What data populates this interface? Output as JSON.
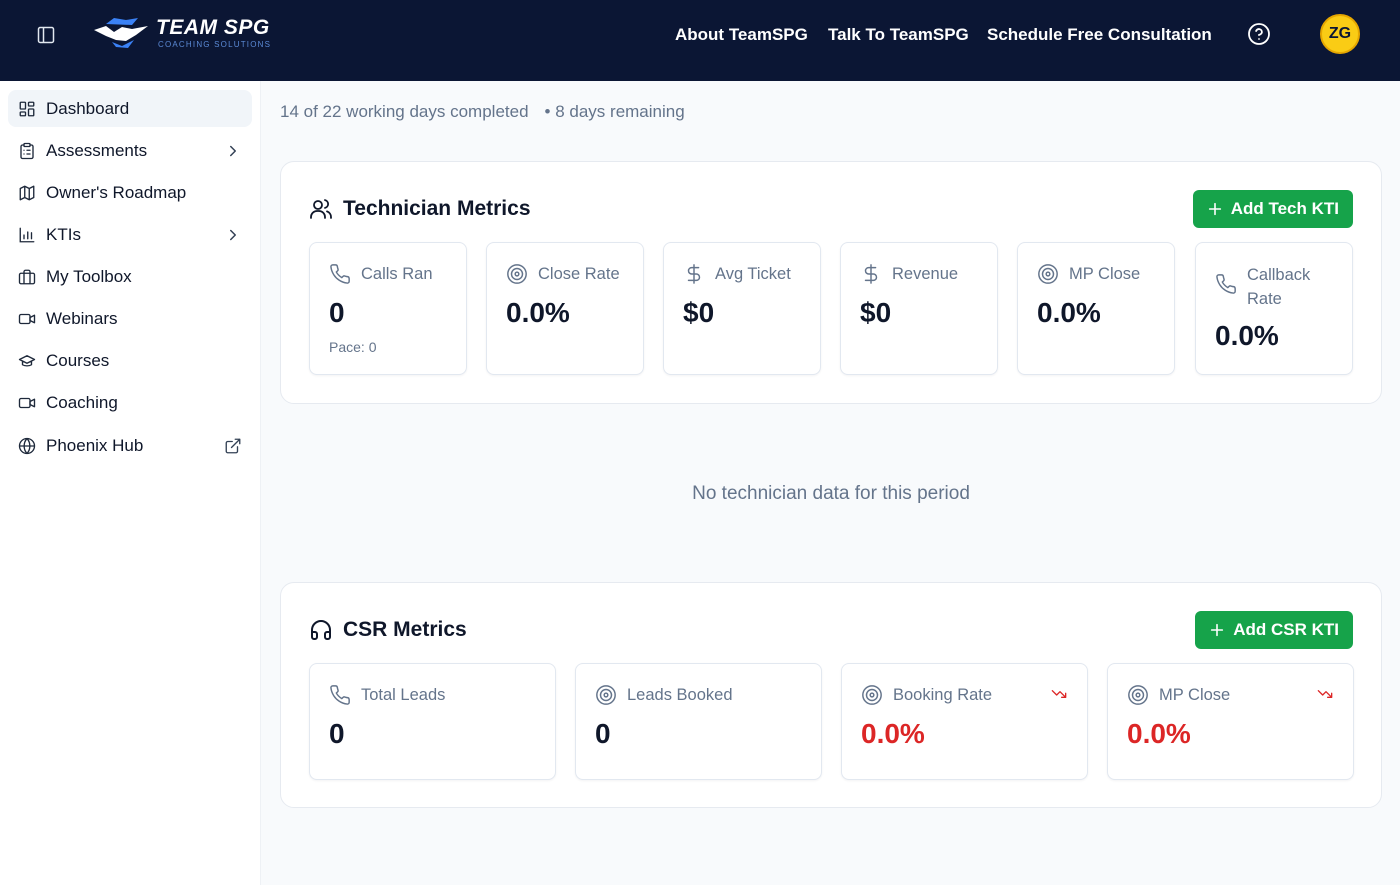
{
  "header": {
    "logo_title": "TEAM SPG",
    "logo_subtitle": "COACHING SOLUTIONS",
    "nav": [
      "About TeamSPG",
      "Talk To TeamSPG",
      "Schedule Free Consultation"
    ],
    "avatar_initials": "ZG"
  },
  "sidebar": {
    "items": [
      {
        "label": "Dashboard",
        "icon": "dashboard-icon",
        "active": true
      },
      {
        "label": "Assessments",
        "icon": "clipboard-icon",
        "trail": "chevron-right-icon"
      },
      {
        "label": "Owner's Roadmap",
        "icon": "map-icon"
      },
      {
        "label": "KTIs",
        "icon": "bar-chart-icon",
        "trail": "chevron-right-icon"
      },
      {
        "label": "My Toolbox",
        "icon": "briefcase-icon"
      },
      {
        "label": "Webinars",
        "icon": "video-icon"
      },
      {
        "label": "Courses",
        "icon": "graduation-cap-icon"
      },
      {
        "label": "Coaching",
        "icon": "video-icon"
      },
      {
        "label": "Phoenix Hub",
        "icon": "globe-icon",
        "trail": "external-link-icon"
      }
    ]
  },
  "period": {
    "completed": "14 of 22 working days completed",
    "remaining": "• 8 days remaining"
  },
  "technician": {
    "title": "Technician Metrics",
    "add_label": "Add Tech KTI",
    "metrics": [
      {
        "label": "Calls Ran",
        "value": "0",
        "sub": "Pace: 0",
        "icon": "phone-icon"
      },
      {
        "label": "Close Rate",
        "value": "0.0%",
        "icon": "target-icon"
      },
      {
        "label": "Avg Ticket",
        "value": "$0",
        "icon": "dollar-icon"
      },
      {
        "label": "Revenue",
        "value": "$0",
        "icon": "dollar-icon"
      },
      {
        "label": "MP Close",
        "value": "0.0%",
        "icon": "target-icon"
      },
      {
        "label": "Callback Rate",
        "value": "0.0%",
        "icon": "phone-icon"
      }
    ],
    "empty": "No technician data for this period"
  },
  "csr": {
    "title": "CSR Metrics",
    "add_label": "Add CSR KTI",
    "metrics": [
      {
        "label": "Total Leads",
        "value": "0",
        "icon": "phone-icon"
      },
      {
        "label": "Leads Booked",
        "value": "0",
        "icon": "target-icon"
      },
      {
        "label": "Booking Rate",
        "value": "0.0%",
        "icon": "target-icon",
        "trend": "trending-down-icon"
      },
      {
        "label": "MP Close",
        "value": "0.0%",
        "icon": "target-icon",
        "trend": "trending-down-icon"
      }
    ]
  },
  "colors": {
    "header_bg": "#0b1634",
    "accent_green": "#16a34a",
    "alert_red": "#dc2626",
    "avatar_yellow": "#facc15"
  }
}
